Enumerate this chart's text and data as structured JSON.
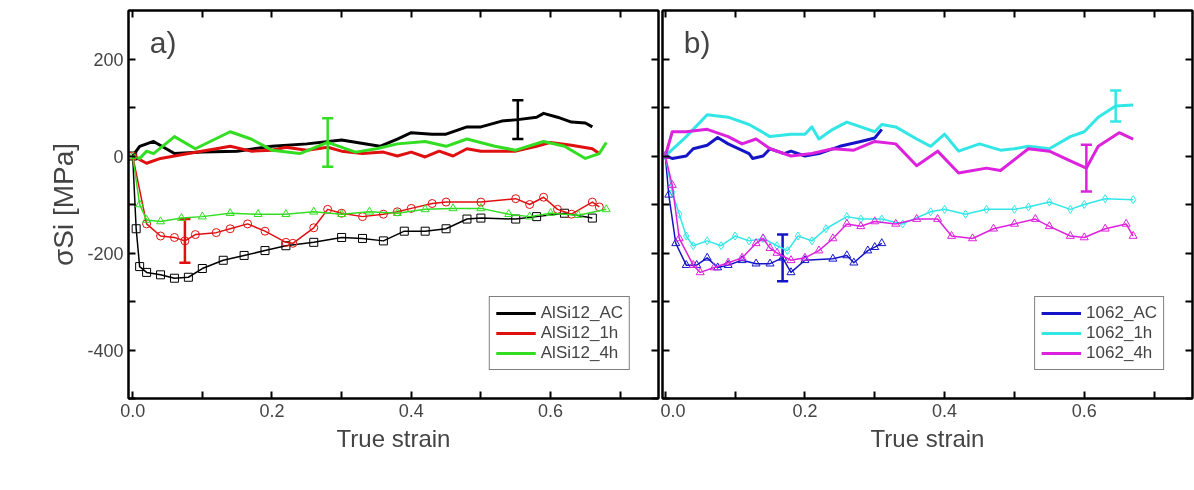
{
  "chart_data": [
    {
      "type": "line",
      "annotations": [
        "a)"
      ],
      "xlabel": "True strain",
      "ylabel": "σSi [MPa]",
      "xlim": [
        -0.006,
        0.755
      ],
      "xticks": [
        {
          "value": 0,
          "label": "0.0"
        },
        {
          "value": 0.1,
          "label": null
        },
        {
          "value": 0.2,
          "label": "0.2"
        },
        {
          "value": 0.3,
          "label": null
        },
        {
          "value": 0.4,
          "label": "0.4"
        },
        {
          "value": 0.5,
          "label": null
        },
        {
          "value": 0.6,
          "label": "0.6"
        },
        {
          "value": 0.7,
          "label": null
        }
      ],
      "ylim": [
        -500,
        300
      ],
      "yticks": [
        {
          "value": -500,
          "label": null
        },
        -400,
        {
          "value": -300,
          "label": null
        },
        -200,
        {
          "value": -100,
          "label": null
        },
        0,
        {
          "value": 100,
          "label": null
        },
        200
      ],
      "grid": false,
      "legend": "bottom right",
      "line_style": "solid",
      "series": [
        {
          "name": "AlSi12_AC",
          "color": "#000000",
          "marker": "none",
          "x": [
            0,
            0.01,
            0.03,
            0.06,
            0.1,
            0.15,
            0.2,
            0.25,
            0.3,
            0.355,
            0.38,
            0.4,
            0.43,
            0.45,
            0.48,
            0.5,
            0.53,
            0.553,
            0.58,
            0.59,
            0.61,
            0.63,
            0.65,
            0.66
          ],
          "values": [
            0,
            20,
            30,
            5,
            8,
            10,
            20,
            25,
            33,
            20,
            35,
            48,
            45,
            45,
            60,
            60,
            72,
            75,
            80,
            88,
            80,
            70,
            68,
            60
          ],
          "errors": [
            null,
            null,
            null,
            null,
            null,
            null,
            null,
            null,
            null,
            null,
            null,
            null,
            null,
            null,
            null,
            null,
            null,
            40,
            null,
            null,
            null,
            null,
            null,
            null
          ]
        },
        {
          "name": "AlSi12_1h",
          "color": "#e01010",
          "marker": "none",
          "x": [
            0,
            0.02,
            0.04,
            0.08,
            0.12,
            0.14,
            0.17,
            0.2,
            0.22,
            0.25,
            0.28,
            0.3,
            0.33,
            0.36,
            0.38,
            0.4,
            0.42,
            0.44,
            0.46,
            0.48,
            0.5,
            0.55,
            0.58,
            0.6,
            0.63,
            0.66,
            0.67
          ],
          "values": [
            0,
            -15,
            -5,
            5,
            15,
            20,
            10,
            12,
            18,
            12,
            18,
            10,
            5,
            8,
            0,
            8,
            -2,
            10,
            0,
            15,
            10,
            10,
            20,
            28,
            22,
            15,
            5
          ]
        },
        {
          "name": "AlSi12_4h",
          "color": "#33dd22",
          "marker": "none",
          "x": [
            0,
            0.01,
            0.02,
            0.03,
            0.06,
            0.09,
            0.14,
            0.17,
            0.2,
            0.24,
            0.28,
            0.32,
            0.35,
            0.38,
            0.42,
            0.45,
            0.48,
            0.52,
            0.55,
            0.59,
            0.62,
            0.65,
            0.67,
            0.68
          ],
          "values": [
            0,
            -5,
            10,
            5,
            40,
            15,
            50,
            35,
            12,
            5,
            28,
            8,
            15,
            25,
            30,
            20,
            35,
            20,
            12,
            30,
            20,
            -5,
            5,
            28
          ],
          "errors": [
            null,
            null,
            null,
            null,
            null,
            null,
            null,
            null,
            null,
            null,
            50,
            null,
            null,
            null,
            null,
            null,
            null,
            null,
            null,
            null,
            null,
            null,
            null,
            null
          ]
        },
        {
          "color": "#000000",
          "marker": "square",
          "x": [
            0,
            0.005,
            0.01,
            0.02,
            0.04,
            0.06,
            0.08,
            0.1,
            0.13,
            0.16,
            0.19,
            0.22,
            0.26,
            0.3,
            0.33,
            0.36,
            0.39,
            0.42,
            0.45,
            0.48,
            0.5,
            0.55,
            0.58,
            0.62,
            0.66
          ],
          "values": [
            0,
            -150,
            -228,
            -240,
            -245,
            -252,
            -250,
            -232,
            -215,
            -205,
            -195,
            -185,
            -178,
            -168,
            -170,
            -175,
            -155,
            -155,
            -150,
            -130,
            -128,
            -130,
            -125,
            -118,
            -128
          ]
        },
        {
          "color": "#e01010",
          "marker": "circle",
          "x": [
            0,
            0.02,
            0.04,
            0.06,
            0.075,
            0.09,
            0.12,
            0.14,
            0.165,
            0.19,
            0.22,
            0.23,
            0.26,
            0.28,
            0.3,
            0.33,
            0.36,
            0.38,
            0.4,
            0.43,
            0.45,
            0.5,
            0.55,
            0.57,
            0.59,
            0.61,
            0.63,
            0.66,
            0.67
          ],
          "values": [
            0,
            -140,
            -165,
            -168,
            -175,
            -162,
            -158,
            -150,
            -140,
            -155,
            -178,
            -180,
            -148,
            -110,
            -118,
            -125,
            -120,
            -115,
            -108,
            -98,
            -95,
            -95,
            -88,
            -100,
            -85,
            -110,
            -120,
            -95,
            -105
          ],
          "errors": [
            null,
            null,
            null,
            null,
            45,
            null,
            null,
            null,
            null,
            null,
            null,
            null,
            null,
            null,
            null,
            null,
            null,
            null,
            null,
            null,
            null,
            null,
            null,
            null,
            null,
            null,
            null,
            null,
            null
          ]
        },
        {
          "color": "#33dd22",
          "marker": "triangle",
          "x": [
            0,
            0.01,
            0.02,
            0.04,
            0.07,
            0.1,
            0.14,
            0.18,
            0.22,
            0.26,
            0.3,
            0.34,
            0.38,
            0.42,
            0.46,
            0.5,
            0.54,
            0.57,
            0.6,
            0.64,
            0.68
          ],
          "values": [
            0,
            -100,
            -132,
            -135,
            -128,
            -125,
            -118,
            -120,
            -120,
            -115,
            -120,
            -115,
            -118,
            -110,
            -108,
            -108,
            -120,
            -125,
            -118,
            -122,
            -110
          ]
        }
      ]
    },
    {
      "type": "line",
      "annotations": [
        "b)"
      ],
      "xlabel": "True strain",
      "tick_labels": "x",
      "xlim": [
        -0.004,
        0.755
      ],
      "xticks": [
        {
          "value": 0,
          "label": "0.0"
        },
        {
          "value": 0.1,
          "label": null
        },
        {
          "value": 0.2,
          "label": "0.2"
        },
        {
          "value": 0.3,
          "label": null
        },
        {
          "value": 0.4,
          "label": "0.4"
        },
        {
          "value": 0.5,
          "label": null
        },
        {
          "value": 0.6,
          "label": "0.6"
        },
        {
          "value": 0.7,
          "label": null
        }
      ],
      "ylim": [
        -500,
        300
      ],
      "yticks": [
        {
          "value": -500,
          "label": null
        },
        -400,
        {
          "value": -300,
          "label": null
        },
        -200,
        {
          "value": -100,
          "label": null
        },
        0,
        {
          "value": 100,
          "label": null
        },
        200
      ],
      "grid": false,
      "legend": "bottom right",
      "line_style": "solid",
      "series": [
        {
          "name": "1062_AC",
          "color": "#1515c8",
          "marker": "none",
          "x": [
            0,
            0.01,
            0.03,
            0.04,
            0.06,
            0.075,
            0.09,
            0.12,
            0.125,
            0.14,
            0.15,
            0.17,
            0.18,
            0.2,
            0.22,
            0.25,
            0.28,
            0.3,
            0.31
          ],
          "values": [
            0,
            -5,
            0,
            15,
            22,
            38,
            25,
            5,
            -5,
            0,
            15,
            5,
            10,
            0,
            5,
            20,
            30,
            37,
            55
          ]
        },
        {
          "name": "1062_1h",
          "color": "#33e6e6",
          "marker": "none",
          "x": [
            0,
            0.03,
            0.06,
            0.09,
            0.12,
            0.15,
            0.18,
            0.2,
            0.21,
            0.22,
            0.24,
            0.26,
            0.28,
            0.3,
            0.31,
            0.33,
            0.36,
            0.38,
            0.4,
            0.42,
            0.45,
            0.48,
            0.5,
            0.52,
            0.55,
            0.58,
            0.6,
            0.62,
            0.645,
            0.67
          ],
          "values": [
            0,
            40,
            85,
            80,
            65,
            40,
            45,
            45,
            60,
            35,
            55,
            70,
            60,
            50,
            65,
            60,
            35,
            20,
            45,
            10,
            25,
            12,
            15,
            20,
            15,
            40,
            50,
            80,
            103,
            105
          ],
          "errors": [
            null,
            null,
            null,
            null,
            null,
            null,
            null,
            null,
            null,
            null,
            null,
            null,
            null,
            null,
            null,
            null,
            null,
            null,
            null,
            null,
            null,
            null,
            null,
            null,
            null,
            null,
            null,
            null,
            32,
            null
          ]
        },
        {
          "name": "1062_4h",
          "color": "#dd22dd",
          "marker": "none",
          "x": [
            0,
            0.01,
            0.03,
            0.06,
            0.09,
            0.11,
            0.13,
            0.15,
            0.18,
            0.21,
            0.24,
            0.27,
            0.3,
            0.33,
            0.36,
            0.39,
            0.42,
            0.46,
            0.48,
            0.52,
            0.55,
            0.58,
            0.603,
            0.62,
            0.65,
            0.67
          ],
          "values": [
            0,
            50,
            50,
            55,
            40,
            25,
            35,
            15,
            0,
            5,
            15,
            12,
            30,
            25,
            -20,
            10,
            -35,
            -25,
            -30,
            15,
            10,
            -10,
            -25,
            20,
            48,
            35
          ],
          "errors": [
            null,
            null,
            null,
            null,
            null,
            null,
            null,
            null,
            null,
            null,
            null,
            null,
            null,
            null,
            null,
            null,
            null,
            null,
            null,
            null,
            null,
            null,
            48,
            null,
            null,
            null
          ]
        },
        {
          "color": "#1515c8",
          "marker": "triangle",
          "x": [
            0,
            0.005,
            0.015,
            0.03,
            0.045,
            0.06,
            0.075,
            0.09,
            0.11,
            0.13,
            0.15,
            0.168,
            0.18,
            0.2,
            0.24,
            0.26,
            0.27,
            0.29,
            0.3,
            0.31
          ],
          "values": [
            0,
            -80,
            -180,
            -225,
            -225,
            -210,
            -230,
            -225,
            -215,
            -222,
            -222,
            -210,
            -240,
            -215,
            -212,
            -205,
            -220,
            -195,
            -188,
            -180
          ],
          "errors": [
            null,
            null,
            null,
            null,
            null,
            null,
            null,
            null,
            null,
            null,
            null,
            48,
            null,
            null,
            null,
            null,
            null,
            null,
            null,
            null
          ]
        },
        {
          "color": "#33e6e6",
          "marker": "diamond",
          "x": [
            0,
            0.01,
            0.02,
            0.03,
            0.04,
            0.06,
            0.08,
            0.1,
            0.12,
            0.14,
            0.16,
            0.175,
            0.19,
            0.21,
            0.23,
            0.26,
            0.28,
            0.31,
            0.34,
            0.38,
            0.4,
            0.43,
            0.46,
            0.5,
            0.52,
            0.55,
            0.58,
            0.6,
            0.63,
            0.67
          ],
          "values": [
            0,
            -75,
            -120,
            -165,
            -185,
            -175,
            -185,
            -165,
            -175,
            -170,
            -185,
            -195,
            -165,
            -175,
            -150,
            -125,
            -130,
            -130,
            -140,
            -115,
            -110,
            -120,
            -110,
            -110,
            -105,
            -95,
            -110,
            -100,
            -88,
            -90
          ]
        },
        {
          "color": "#dd22dd",
          "marker": "triangle",
          "x": [
            0,
            0.01,
            0.02,
            0.04,
            0.05,
            0.07,
            0.09,
            0.11,
            0.13,
            0.14,
            0.15,
            0.16,
            0.18,
            0.2,
            0.22,
            0.24,
            0.26,
            0.28,
            0.3,
            0.33,
            0.36,
            0.39,
            0.41,
            0.44,
            0.47,
            0.5,
            0.53,
            0.55,
            0.58,
            0.6,
            0.63,
            0.66,
            0.67
          ],
          "values": [
            0,
            -60,
            -170,
            -225,
            -240,
            -230,
            -220,
            -210,
            -180,
            -170,
            -190,
            -200,
            -215,
            -210,
            -195,
            -170,
            -140,
            -145,
            -135,
            -140,
            -130,
            -130,
            -165,
            -170,
            -150,
            -140,
            -130,
            -145,
            -165,
            -168,
            -150,
            -140,
            -165
          ]
        }
      ]
    }
  ]
}
